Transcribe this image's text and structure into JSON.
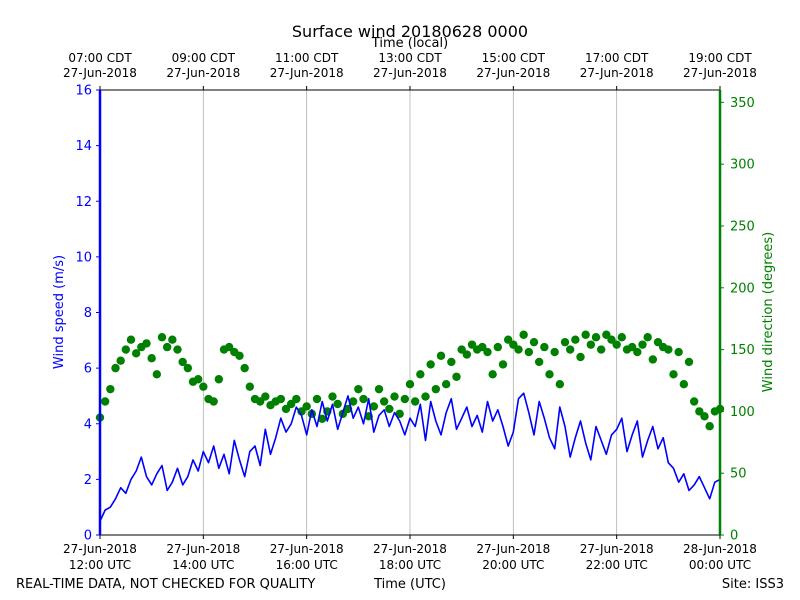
{
  "chart_data": {
    "type": "scatter",
    "title": "Surface wind 20180628 0000",
    "top_axis_label": "Time (local)",
    "bottom_axis_label": "Time (UTC)",
    "left_axis_label": "Wind speed (m/s)",
    "right_axis_label": "Wind direction (degrees)",
    "footer_left": "REAL-TIME DATA, NOT CHECKED FOR QUALITY",
    "footer_right": "Site: ISS3",
    "x_range_hours_utc": [
      12,
      24
    ],
    "left_ylim": [
      0,
      16
    ],
    "right_ylim": [
      0,
      360
    ],
    "left_ticks": [
      0,
      2,
      4,
      6,
      8,
      10,
      12,
      14,
      16
    ],
    "right_ticks": [
      0,
      50,
      100,
      150,
      200,
      250,
      300,
      350
    ],
    "bottom_ticks": [
      {
        "hour": 12,
        "l1": "27-Jun-2018",
        "l2": "12:00 UTC"
      },
      {
        "hour": 14,
        "l1": "27-Jun-2018",
        "l2": "14:00 UTC"
      },
      {
        "hour": 16,
        "l1": "27-Jun-2018",
        "l2": "16:00 UTC"
      },
      {
        "hour": 18,
        "l1": "27-Jun-2018",
        "l2": "18:00 UTC"
      },
      {
        "hour": 20,
        "l1": "27-Jun-2018",
        "l2": "20:00 UTC"
      },
      {
        "hour": 22,
        "l1": "27-Jun-2018",
        "l2": "22:00 UTC"
      },
      {
        "hour": 24,
        "l1": "28-Jun-2018",
        "l2": "00:00 UTC"
      }
    ],
    "top_ticks": [
      {
        "hour": 12,
        "l1": "07:00 CDT",
        "l2": "27-Jun-2018"
      },
      {
        "hour": 14,
        "l1": "09:00 CDT",
        "l2": "27-Jun-2018"
      },
      {
        "hour": 16,
        "l1": "11:00 CDT",
        "l2": "27-Jun-2018"
      },
      {
        "hour": 18,
        "l1": "13:00 CDT",
        "l2": "27-Jun-2018"
      },
      {
        "hour": 20,
        "l1": "15:00 CDT",
        "l2": "27-Jun-2018"
      },
      {
        "hour": 22,
        "l1": "17:00 CDT",
        "l2": "27-Jun-2018"
      },
      {
        "hour": 24,
        "l1": "19:00 CDT",
        "l2": "27-Jun-2018"
      }
    ],
    "grid": "vertical",
    "series": [
      {
        "name": "Wind speed (m/s)",
        "axis": "left",
        "style": "line",
        "color": "#0000ff",
        "hours": [
          12.0,
          12.1,
          12.2,
          12.3,
          12.4,
          12.5,
          12.6,
          12.7,
          12.8,
          12.9,
          13.0,
          13.1,
          13.2,
          13.3,
          13.4,
          13.5,
          13.6,
          13.7,
          13.8,
          13.9,
          14.0,
          14.1,
          14.2,
          14.3,
          14.4,
          14.5,
          14.6,
          14.7,
          14.8,
          14.9,
          15.0,
          15.1,
          15.2,
          15.3,
          15.4,
          15.5,
          15.6,
          15.7,
          15.8,
          15.9,
          16.0,
          16.1,
          16.2,
          16.3,
          16.4,
          16.5,
          16.6,
          16.7,
          16.8,
          16.9,
          17.0,
          17.1,
          17.2,
          17.3,
          17.4,
          17.5,
          17.6,
          17.7,
          17.8,
          17.9,
          18.0,
          18.1,
          18.2,
          18.3,
          18.4,
          18.5,
          18.6,
          18.7,
          18.8,
          18.9,
          19.0,
          19.1,
          19.2,
          19.3,
          19.4,
          19.5,
          19.6,
          19.7,
          19.8,
          19.9,
          20.0,
          20.1,
          20.2,
          20.3,
          20.4,
          20.5,
          20.6,
          20.7,
          20.8,
          20.9,
          21.0,
          21.1,
          21.2,
          21.3,
          21.4,
          21.5,
          21.6,
          21.7,
          21.8,
          21.9,
          22.0,
          22.1,
          22.2,
          22.3,
          22.4,
          22.5,
          22.6,
          22.7,
          22.8,
          22.9,
          23.0,
          23.1,
          23.2,
          23.3,
          23.4,
          23.5,
          23.6,
          23.7,
          23.8,
          23.9,
          24.0
        ],
        "values": [
          0.5,
          0.9,
          1.0,
          1.3,
          1.7,
          1.5,
          2.0,
          2.3,
          2.8,
          2.1,
          1.8,
          2.2,
          2.5,
          1.6,
          1.9,
          2.4,
          1.8,
          2.1,
          2.7,
          2.3,
          3.0,
          2.6,
          3.2,
          2.4,
          2.9,
          2.2,
          3.4,
          2.7,
          2.1,
          3.0,
          3.2,
          2.5,
          3.8,
          2.9,
          3.5,
          4.2,
          3.7,
          4.0,
          4.6,
          4.3,
          3.6,
          4.5,
          3.9,
          4.8,
          4.1,
          4.7,
          3.8,
          4.4,
          5.0,
          4.2,
          4.6,
          4.0,
          4.9,
          3.7,
          4.3,
          4.5,
          3.9,
          4.4,
          4.1,
          3.6,
          4.2,
          3.9,
          4.7,
          3.4,
          4.8,
          4.1,
          3.6,
          4.4,
          4.9,
          3.8,
          4.2,
          4.6,
          3.9,
          4.3,
          3.7,
          4.8,
          4.1,
          4.5,
          3.9,
          3.2,
          3.7,
          4.9,
          5.1,
          4.4,
          3.6,
          4.8,
          4.2,
          3.5,
          3.1,
          4.6,
          3.9,
          2.8,
          3.5,
          4.1,
          3.3,
          2.7,
          3.9,
          3.4,
          2.9,
          3.6,
          3.8,
          4.2,
          3.0,
          3.6,
          4.1,
          2.8,
          3.4,
          3.9,
          3.1,
          3.5,
          2.6,
          2.4,
          1.9,
          2.2,
          1.6,
          1.8,
          2.1,
          1.7,
          1.3,
          1.9,
          2.0
        ]
      },
      {
        "name": "Wind direction (degrees)",
        "axis": "right",
        "style": "points",
        "color": "#008000",
        "hours": [
          12.0,
          12.1,
          12.2,
          12.3,
          12.4,
          12.5,
          12.6,
          12.7,
          12.8,
          12.9,
          13.0,
          13.1,
          13.2,
          13.3,
          13.4,
          13.5,
          13.6,
          13.7,
          13.8,
          13.9,
          14.0,
          14.1,
          14.2,
          14.3,
          14.4,
          14.5,
          14.6,
          14.7,
          14.8,
          14.9,
          15.0,
          15.1,
          15.2,
          15.3,
          15.4,
          15.5,
          15.6,
          15.7,
          15.8,
          15.9,
          16.0,
          16.1,
          16.2,
          16.3,
          16.4,
          16.5,
          16.6,
          16.7,
          16.8,
          16.9,
          17.0,
          17.1,
          17.2,
          17.3,
          17.4,
          17.5,
          17.6,
          17.7,
          17.8,
          17.9,
          18.0,
          18.1,
          18.2,
          18.3,
          18.4,
          18.5,
          18.6,
          18.7,
          18.8,
          18.9,
          19.0,
          19.1,
          19.2,
          19.3,
          19.4,
          19.5,
          19.6,
          19.7,
          19.8,
          19.9,
          20.0,
          20.1,
          20.2,
          20.3,
          20.4,
          20.5,
          20.6,
          20.7,
          20.8,
          20.9,
          21.0,
          21.1,
          21.2,
          21.3,
          21.4,
          21.5,
          21.6,
          21.7,
          21.8,
          21.9,
          22.0,
          22.1,
          22.2,
          22.3,
          22.4,
          22.5,
          22.6,
          22.7,
          22.8,
          22.9,
          23.0,
          23.1,
          23.2,
          23.3,
          23.4,
          23.5,
          23.6,
          23.7,
          23.8,
          23.9,
          24.0
        ],
        "values": [
          95,
          108,
          118,
          135,
          141,
          150,
          158,
          147,
          152,
          155,
          143,
          130,
          160,
          152,
          158,
          150,
          140,
          135,
          124,
          126,
          120,
          110,
          108,
          126,
          150,
          152,
          148,
          145,
          135,
          120,
          110,
          108,
          112,
          105,
          108,
          110,
          102,
          106,
          110,
          100,
          104,
          98,
          110,
          94,
          100,
          112,
          106,
          98,
          102,
          108,
          118,
          110,
          96,
          104,
          118,
          108,
          102,
          112,
          98,
          110,
          122,
          108,
          130,
          112,
          138,
          118,
          145,
          122,
          140,
          128,
          150,
          146,
          154,
          150,
          152,
          148,
          130,
          152,
          138,
          158,
          154,
          150,
          162,
          148,
          156,
          140,
          152,
          130,
          148,
          122,
          156,
          150,
          158,
          144,
          162,
          154,
          160,
          150,
          162,
          158,
          154,
          160,
          150,
          152,
          148,
          154,
          160,
          142,
          156,
          152,
          150,
          130,
          148,
          122,
          140,
          108,
          100,
          96,
          88,
          100,
          102
        ]
      }
    ]
  }
}
